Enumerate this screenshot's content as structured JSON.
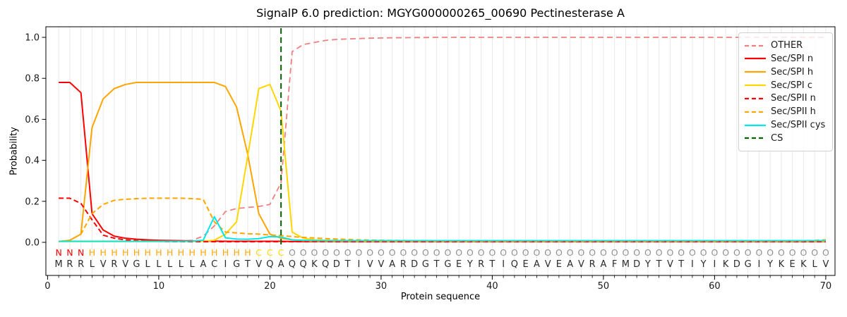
{
  "chart_data": {
    "type": "line",
    "title": "SignalP 6.0 prediction: MGYG000000265_00690 Pectinesterase A",
    "xlabel": "Protein sequence",
    "ylabel": "Probability",
    "x_ticks": [
      0,
      10,
      20,
      30,
      40,
      50,
      60,
      70
    ],
    "y_tick_labels": [
      "0.0",
      "0.2",
      "0.4",
      "0.6",
      "0.8",
      "1.0"
    ],
    "y_tick_values": [
      0.0,
      0.2,
      0.4,
      0.6,
      0.8,
      1.0
    ],
    "xlim": [
      -0.2,
      70.8
    ],
    "ylim": [
      -0.16,
      1.05
    ],
    "grid": "light vertical gridline at every residue position 1-70",
    "legend_position": "upper right",
    "sequence": "MRRLVRVGLLLLLACIGTVQAQQKQDTIVVARDGTGEYRTIQEAVEAVRAFMDYTVTIYIKDGIYKEKLV",
    "region_labels": "NNNHHHHHHHHHHHHHHHCCCOOOOOOOOOOOOOOOOOOOOOOOOOOOOOOOOOOOOOOOOOOOOOOOOO",
    "region_label_colors": {
      "N": "#ff0000",
      "H": "#ffa500",
      "C": "#ffd700",
      "O": "#909090"
    },
    "sequence_color": "#2b2b2b",
    "series": [
      {
        "name": "OTHER",
        "color": "#f08080",
        "dash": "8 5",
        "width": 1.8,
        "values": [
          0.005,
          0.005,
          0.005,
          0.005,
          0.005,
          0.005,
          0.005,
          0.005,
          0.005,
          0.005,
          0.006,
          0.007,
          0.01,
          0.03,
          0.08,
          0.15,
          0.165,
          0.17,
          0.175,
          0.185,
          0.29,
          0.93,
          0.965,
          0.975,
          0.985,
          0.99,
          0.992,
          0.994,
          0.996,
          0.997,
          0.998,
          0.998,
          0.999,
          0.999,
          1.0,
          1.0,
          1.0,
          1.0,
          1.0,
          1.0,
          1.0,
          1.0,
          1.0,
          1.0,
          1.0,
          1.0,
          1.0,
          1.0,
          1.0,
          1.0,
          1.0,
          1.0,
          1.0,
          1.0,
          1.0,
          1.0,
          1.0,
          1.0,
          1.0,
          1.0,
          1.0,
          1.0,
          1.0,
          1.0,
          1.0,
          1.0,
          1.0,
          1.0,
          1.0,
          1.0
        ]
      },
      {
        "name": "Sec/SPI n",
        "color": "#ff0000",
        "dash": null,
        "width": 2,
        "values": [
          0.78,
          0.78,
          0.73,
          0.14,
          0.06,
          0.03,
          0.02,
          0.015,
          0.012,
          0.01,
          0.009,
          0.008,
          0.007,
          0.006,
          0.006,
          0.005,
          0.005,
          0.005,
          0.005,
          0.005,
          0.005,
          0.004,
          0.004,
          0.004,
          0.004,
          0.003,
          0.003,
          0.003,
          0.003,
          0.003,
          0.003,
          0.003,
          0.003,
          0.003,
          0.003,
          0.003,
          0.003,
          0.003,
          0.003,
          0.003,
          0.003,
          0.003,
          0.003,
          0.003,
          0.003,
          0.003,
          0.003,
          0.003,
          0.003,
          0.003,
          0.003,
          0.003,
          0.003,
          0.003,
          0.003,
          0.003,
          0.003,
          0.003,
          0.003,
          0.003,
          0.003,
          0.003,
          0.003,
          0.003,
          0.003,
          0.003,
          0.003,
          0.003,
          0.003,
          0.003
        ]
      },
      {
        "name": "Sec/SPI h",
        "color": "#ffa500",
        "dash": null,
        "width": 2,
        "values": [
          0.004,
          0.01,
          0.04,
          0.56,
          0.7,
          0.75,
          0.77,
          0.78,
          0.78,
          0.78,
          0.78,
          0.78,
          0.78,
          0.78,
          0.78,
          0.76,
          0.66,
          0.43,
          0.14,
          0.04,
          0.02,
          0.012,
          0.008,
          0.006,
          0.005,
          0.004,
          0.004,
          0.004,
          0.004,
          0.004,
          0.004,
          0.004,
          0.004,
          0.004,
          0.004,
          0.004,
          0.004,
          0.004,
          0.004,
          0.004,
          0.004,
          0.004,
          0.004,
          0.004,
          0.004,
          0.004,
          0.004,
          0.004,
          0.004,
          0.004,
          0.004,
          0.004,
          0.004,
          0.004,
          0.004,
          0.004,
          0.004,
          0.004,
          0.004,
          0.004,
          0.004,
          0.004,
          0.004,
          0.004,
          0.004,
          0.004,
          0.004,
          0.004,
          0.004,
          0.004
        ]
      },
      {
        "name": "Sec/SPI c",
        "color": "#ffd700",
        "dash": null,
        "width": 2,
        "values": [
          0.004,
          0.004,
          0.004,
          0.004,
          0.004,
          0.004,
          0.004,
          0.004,
          0.004,
          0.004,
          0.004,
          0.004,
          0.004,
          0.005,
          0.01,
          0.04,
          0.1,
          0.42,
          0.75,
          0.77,
          0.64,
          0.05,
          0.02,
          0.012,
          0.01,
          0.009,
          0.008,
          0.007,
          0.007,
          0.006,
          0.006,
          0.006,
          0.006,
          0.006,
          0.006,
          0.006,
          0.006,
          0.006,
          0.006,
          0.006,
          0.006,
          0.006,
          0.006,
          0.006,
          0.006,
          0.006,
          0.006,
          0.006,
          0.006,
          0.006,
          0.006,
          0.006,
          0.006,
          0.006,
          0.006,
          0.006,
          0.006,
          0.006,
          0.006,
          0.006,
          0.006,
          0.006,
          0.006,
          0.006,
          0.006,
          0.006,
          0.006,
          0.006,
          0.006,
          0.006
        ]
      },
      {
        "name": "Sec/SPII n",
        "color": "#ff0000",
        "dash": "7 4",
        "width": 2,
        "values": [
          0.215,
          0.215,
          0.19,
          0.11,
          0.035,
          0.02,
          0.012,
          0.008,
          0.006,
          0.005,
          0.004,
          0.004,
          0.003,
          0.003,
          0.003,
          0.003,
          0.003,
          0.003,
          0.003,
          0.003,
          0.003,
          0.003,
          0.003,
          0.003,
          0.003,
          0.003,
          0.003,
          0.003,
          0.003,
          0.003,
          0.003,
          0.003,
          0.003,
          0.003,
          0.003,
          0.003,
          0.003,
          0.003,
          0.003,
          0.003,
          0.003,
          0.003,
          0.003,
          0.003,
          0.003,
          0.003,
          0.003,
          0.003,
          0.003,
          0.003,
          0.003,
          0.003,
          0.003,
          0.003,
          0.003,
          0.003,
          0.003,
          0.003,
          0.003,
          0.003,
          0.003,
          0.003,
          0.003,
          0.003,
          0.003,
          0.003,
          0.003,
          0.003,
          0.003,
          0.003
        ]
      },
      {
        "name": "Sec/SPII h",
        "color": "#ffa500",
        "dash": "7 4",
        "width": 2,
        "values": [
          0.004,
          0.01,
          0.04,
          0.14,
          0.185,
          0.205,
          0.21,
          0.213,
          0.215,
          0.215,
          0.215,
          0.215,
          0.213,
          0.21,
          0.1,
          0.05,
          0.046,
          0.042,
          0.04,
          0.036,
          0.033,
          0.028,
          0.024,
          0.021,
          0.018,
          0.016,
          0.014,
          0.012,
          0.011,
          0.01,
          0.009,
          0.009,
          0.008,
          0.008,
          0.007,
          0.007,
          0.007,
          0.006,
          0.006,
          0.006,
          0.006,
          0.006,
          0.006,
          0.006,
          0.006,
          0.006,
          0.006,
          0.006,
          0.006,
          0.006,
          0.006,
          0.006,
          0.006,
          0.006,
          0.006,
          0.006,
          0.006,
          0.006,
          0.006,
          0.006,
          0.006,
          0.006,
          0.006,
          0.006,
          0.006,
          0.006,
          0.006,
          0.007,
          0.009,
          0.012
        ]
      },
      {
        "name": "Sec/SPII cys",
        "color": "#00e8e8",
        "dash": null,
        "width": 2,
        "values": [
          0.005,
          0.005,
          0.005,
          0.005,
          0.005,
          0.005,
          0.005,
          0.005,
          0.005,
          0.005,
          0.005,
          0.005,
          0.006,
          0.01,
          0.125,
          0.022,
          0.016,
          0.015,
          0.018,
          0.028,
          0.026,
          0.012,
          0.01,
          0.009,
          0.008,
          0.008,
          0.008,
          0.008,
          0.008,
          0.008,
          0.008,
          0.008,
          0.008,
          0.008,
          0.008,
          0.008,
          0.008,
          0.008,
          0.008,
          0.008,
          0.008,
          0.008,
          0.008,
          0.008,
          0.008,
          0.008,
          0.008,
          0.008,
          0.008,
          0.008,
          0.008,
          0.008,
          0.008,
          0.008,
          0.008,
          0.008,
          0.008,
          0.008,
          0.008,
          0.008,
          0.008,
          0.008,
          0.008,
          0.008,
          0.008,
          0.008,
          0.008,
          0.008,
          0.008,
          0.008
        ]
      }
    ],
    "cs_marker": {
      "label": "CS",
      "x": 21,
      "color": "#006400",
      "dash": "8 5",
      "width": 2
    },
    "axis_colors": {
      "frame": "#000000",
      "gridline": "#e8e8e8",
      "tick_label": "#1a1a1a"
    }
  }
}
